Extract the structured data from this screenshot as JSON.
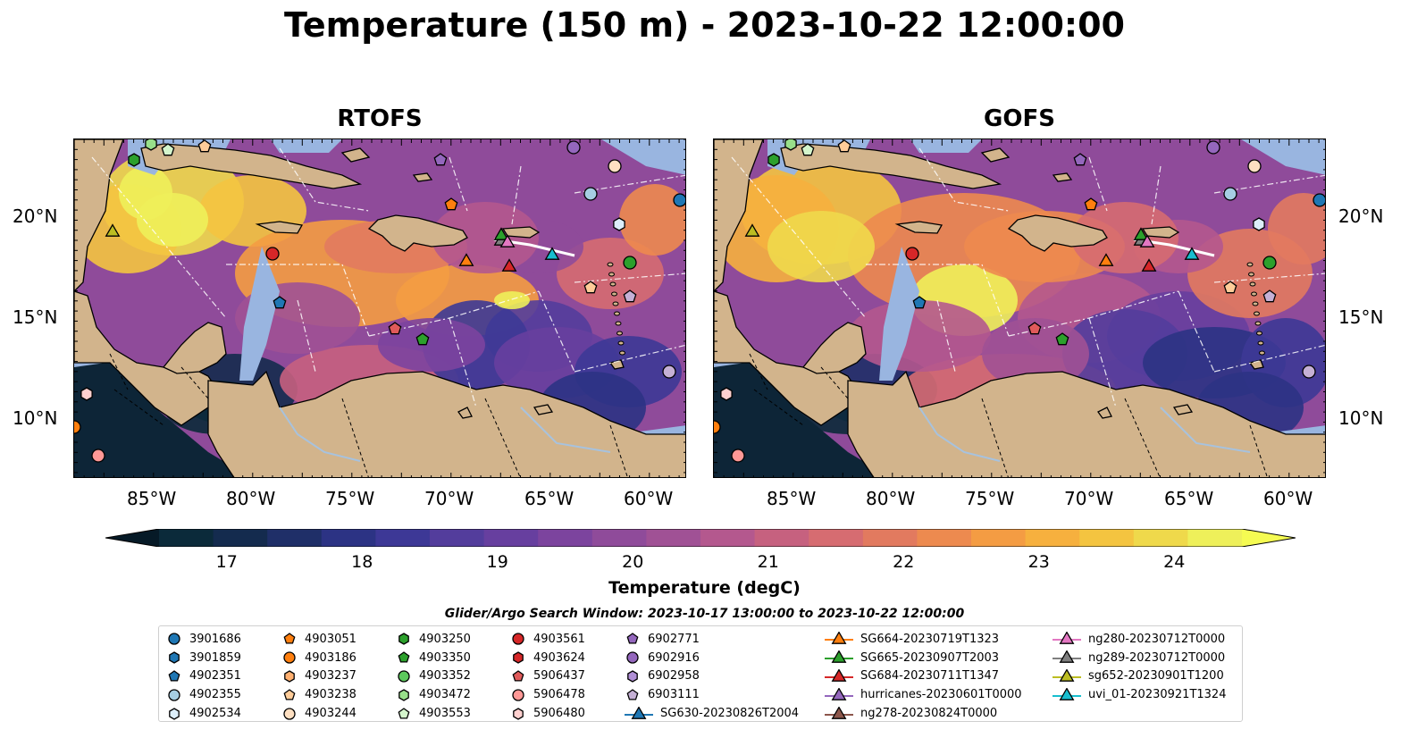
{
  "title": "Temperature (150 m) - 2023-10-22 12:00:00",
  "panels": [
    {
      "title": "RTOFS"
    },
    {
      "title": "GOFS"
    }
  ],
  "lon_ticks": [
    "85°W",
    "80°W",
    "75°W",
    "70°W",
    "65°W",
    "60°W"
  ],
  "lat_ticks": [
    "20°N",
    "15°N",
    "10°N"
  ],
  "colorbar": {
    "label": "Temperature (degC)",
    "ticks": [
      "17",
      "18",
      "19",
      "20",
      "21",
      "22",
      "23",
      "24"
    ],
    "min": 16.5,
    "max": 24.5,
    "extend": "both",
    "colors": [
      "#0b2a3a",
      "#142b4e",
      "#1f2f68",
      "#2c3384",
      "#3d3896",
      "#533d9c",
      "#673f9f",
      "#7c449e",
      "#8f4b9a",
      "#a05195",
      "#b4588e",
      "#c6617f",
      "#d66c71",
      "#e27a5f",
      "#ed8a4f",
      "#f49c43",
      "#f6b03e",
      "#f4c440",
      "#efd94b",
      "#eef05a"
    ],
    "under_color": "#061a27",
    "over_color": "#f5fb52"
  },
  "map_colors": {
    "land": "#d2b48c",
    "shelf": "#99b5e0",
    "deep": "#0d2537"
  },
  "search_window": "Glider/Argo Search Window: 2023-10-17 13:00:00 to 2023-10-22 12:00:00",
  "legend": {
    "columns": [
      [
        {
          "label": "3901686",
          "marker": "circle",
          "color": "#1f77b4"
        },
        {
          "label": "3901859",
          "marker": "hexagon",
          "color": "#1f77b4"
        },
        {
          "label": "4902351",
          "marker": "pentagon",
          "color": "#1f77b4"
        },
        {
          "label": "4902355",
          "marker": "circle",
          "color": "#a6cee3"
        },
        {
          "label": "4902534",
          "marker": "hexagon",
          "color": "#dceefa"
        }
      ],
      [
        {
          "label": "4903051",
          "marker": "pentagon",
          "color": "#ff7f0e"
        },
        {
          "label": "4903186",
          "marker": "circle",
          "color": "#ff7f0e"
        },
        {
          "label": "4903237",
          "marker": "hexagon",
          "color": "#ffb070"
        },
        {
          "label": "4903238",
          "marker": "pentagon",
          "color": "#ffcc99"
        },
        {
          "label": "4903244",
          "marker": "circle",
          "color": "#ffe0c2"
        }
      ],
      [
        {
          "label": "4903250",
          "marker": "hexagon",
          "color": "#2ca02c"
        },
        {
          "label": "4903350",
          "marker": "pentagon",
          "color": "#2ca02c"
        },
        {
          "label": "4903352",
          "marker": "circle",
          "color": "#5cc85c"
        },
        {
          "label": "4903472",
          "marker": "hexagon",
          "color": "#98df8a"
        },
        {
          "label": "4903553",
          "marker": "pentagon",
          "color": "#d4f5cc"
        }
      ],
      [
        {
          "label": "4903561",
          "marker": "circle",
          "color": "#d62728"
        },
        {
          "label": "4903624",
          "marker": "hexagon",
          "color": "#d62728"
        },
        {
          "label": "5906437",
          "marker": "pentagon",
          "color": "#e05a5a"
        },
        {
          "label": "5906478",
          "marker": "circle",
          "color": "#ff9896"
        },
        {
          "label": "5906480",
          "marker": "hexagon",
          "color": "#ffd0cf"
        }
      ],
      [
        {
          "label": "6902771",
          "marker": "pentagon",
          "color": "#9467bd"
        },
        {
          "label": "6902916",
          "marker": "circle",
          "color": "#9467bd"
        },
        {
          "label": "6902958",
          "marker": "hexagon",
          "color": "#b08fd6"
        },
        {
          "label": "6903111",
          "marker": "pentagon",
          "color": "#c5b0d5"
        },
        {
          "label": "SG630-20230826T2004",
          "marker": "triangle-line",
          "color": "#1f77b4"
        }
      ],
      [
        {
          "label": "SG664-20230719T1323",
          "marker": "triangle-line",
          "color": "#ff7f0e"
        },
        {
          "label": "SG665-20230907T2003",
          "marker": "triangle-line",
          "color": "#2ca02c"
        },
        {
          "label": "SG684-20230711T1347",
          "marker": "triangle-line",
          "color": "#d62728"
        },
        {
          "label": "hurricanes-20230601T0000",
          "marker": "triangle-line",
          "color": "#9467bd"
        },
        {
          "label": "ng278-20230824T0000",
          "marker": "triangle-line",
          "color": "#8c564b"
        }
      ],
      [
        {
          "label": "ng280-20230712T0000",
          "marker": "triangle-line",
          "color": "#e377c2"
        },
        {
          "label": "ng289-20230712T0000",
          "marker": "triangle-line",
          "color": "#7f7f7f"
        },
        {
          "label": "sg652-20230901T1200",
          "marker": "triangle-line",
          "color": "#bcbd22"
        },
        {
          "label": "uvi_01-20230921T1324",
          "marker": "triangle-line",
          "color": "#17becf"
        }
      ]
    ]
  }
}
